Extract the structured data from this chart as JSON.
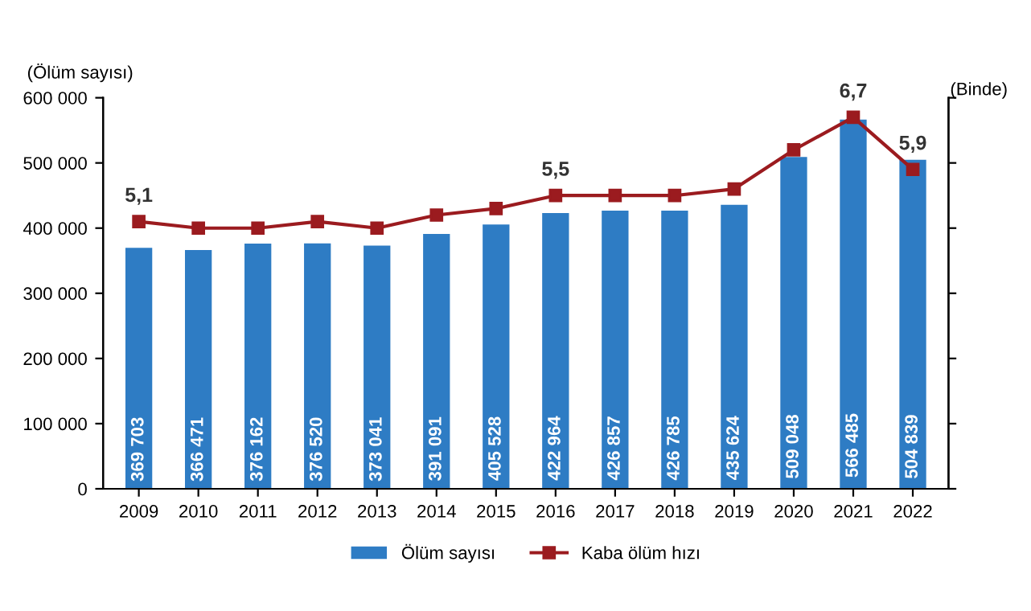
{
  "chart_data": {
    "type": "bar",
    "categories": [
      "2009",
      "2010",
      "2011",
      "2012",
      "2013",
      "2014",
      "2015",
      "2016",
      "2017",
      "2018",
      "2019",
      "2020",
      "2021",
      "2022"
    ],
    "ylabel": "(Ölüm sayısı)",
    "y2label": "(Binde)",
    "ylim": [
      0,
      600000
    ],
    "yticks": [
      0,
      {
        "value": 100000,
        "label": "100 000"
      },
      {
        "value": 200000,
        "label": "200 000"
      },
      {
        "value": 300000,
        "label": "300 000"
      },
      {
        "value": 400000,
        "label": "400 000"
      },
      {
        "value": 500000,
        "label": "500 000"
      },
      {
        "value": 600000,
        "label": "600 000"
      }
    ],
    "y2lim": [
      1,
      7
    ],
    "y2ticks": [
      {
        "value": 1,
        "label": null
      },
      {
        "value": 2,
        "label": null
      },
      {
        "value": 3,
        "label": null
      },
      {
        "value": 4,
        "label": null
      },
      {
        "value": 5,
        "label": null
      },
      {
        "value": 6,
        "label": null
      },
      {
        "value": 7,
        "label": null
      }
    ],
    "series": [
      {
        "name": "Ölüm sayısı",
        "color": "#2e7cc4",
        "values": [
          369703,
          366471,
          376162,
          376520,
          373041,
          391091,
          405528,
          422964,
          426857,
          426785,
          435624,
          509048,
          566485,
          504839
        ],
        "value_labels": [
          "369 703",
          "366 471",
          "376 162",
          "376 520",
          "373 041",
          "391 091",
          "405 528",
          "422 964",
          "426 857",
          "426 785",
          "435 624",
          "509 048",
          "566 485",
          "504 839"
        ]
      },
      {
        "name": "Kaba ölüm hızı",
        "type": "line",
        "axis": "y2",
        "color": "#9b1b1f",
        "marker": "square",
        "values": [
          5.1,
          5.0,
          5.0,
          5.1,
          5.0,
          5.2,
          5.3,
          5.5,
          5.5,
          5.5,
          5.6,
          6.2,
          6.7,
          5.9
        ],
        "value_labels": [
          "5,1",
          null,
          null,
          null,
          null,
          null,
          null,
          "5,5",
          null,
          null,
          null,
          null,
          "6,7",
          "5,9"
        ]
      }
    ],
    "legend": "bottom",
    "grid": false
  }
}
